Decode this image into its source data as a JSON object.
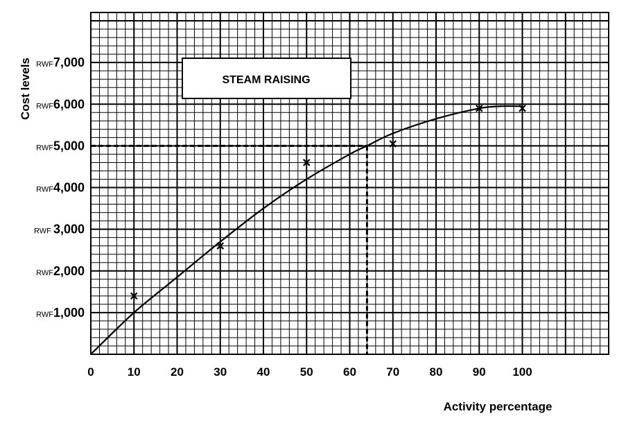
{
  "chart_data": {
    "type": "scatter",
    "title": "STEAM RAISING",
    "xlabel": "Activity percentage",
    "ylabel": "Cost levels",
    "x_ticks": [
      "0",
      "10",
      "20",
      "30",
      "40",
      "50",
      "60",
      "70",
      "80",
      "90",
      "100"
    ],
    "y_ticks": [
      {
        "currency": "RWF",
        "amount": "1,000"
      },
      {
        "currency": "RWF",
        "amount": "2,000"
      },
      {
        "currency": "RWF ",
        "amount": "3,000"
      },
      {
        "currency": "RWF",
        "amount": "4,000"
      },
      {
        "currency": "RWF",
        "amount": "5,000"
      },
      {
        "currency": "RWF",
        "amount": "6,000"
      },
      {
        "currency": "RWF",
        "amount": "7,000"
      }
    ],
    "xlim": [
      0,
      120
    ],
    "ylim": [
      0,
      8200
    ],
    "grid": true,
    "series": [
      {
        "kind": "observed-points",
        "marker": "x",
        "x": [
          10,
          30,
          50,
          70,
          90,
          100
        ],
        "y": [
          1400,
          2600,
          4600,
          5050,
          5900,
          5900
        ]
      },
      {
        "kind": "fitted-curve",
        "x": [
          0,
          10,
          20,
          30,
          40,
          50,
          60,
          64,
          70,
          80,
          90,
          95,
          100
        ],
        "y": [
          0,
          1000,
          1850,
          2700,
          3500,
          4200,
          4800,
          5000,
          5300,
          5650,
          5900,
          5950,
          5950
        ]
      }
    ],
    "reference_lines": [
      {
        "orientation": "vertical",
        "x": 64,
        "style": "dashed"
      },
      {
        "orientation": "horizontal",
        "y": 5000,
        "style": "dashed"
      }
    ]
  }
}
